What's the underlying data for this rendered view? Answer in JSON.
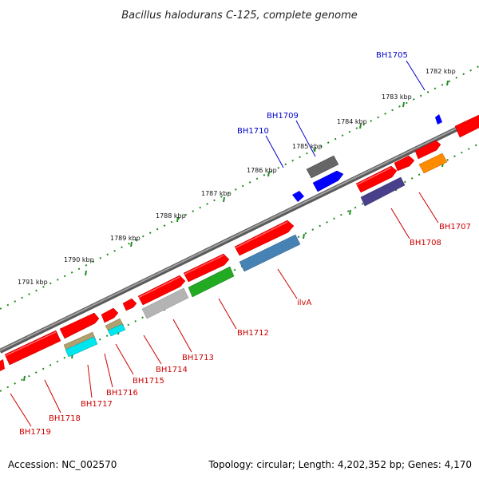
{
  "title": "Bacillus halodurans C-125, complete genome",
  "footer": {
    "accession": "Accession: NC_002570",
    "topology": "Topology: circular; Length: 4,202,352 bp; Genes: 4,170"
  },
  "kbp_ticks": [
    "1782 kbp",
    "1783 kbp",
    "1784 kbp",
    "1785 kbp",
    "1786 kbp",
    "1787 kbp",
    "1788 kbp",
    "1789 kbp",
    "1790 kbp",
    "1791 kbp"
  ],
  "gene_labels": {
    "outer": [
      "BH1705",
      "BH1709",
      "BH1710"
    ],
    "inner": [
      "BH1707",
      "BH1708",
      "ilvA",
      "BH1712",
      "BH1713",
      "BH1714",
      "BH1715",
      "BH1716",
      "BH1717",
      "BH1718",
      "BH1719"
    ]
  },
  "colors": {
    "backbone": "#808080",
    "tick": "#228b22",
    "gene_red": "#ff0000",
    "gene_blue": "#0000ff",
    "gene_gray": "#666666",
    "gene_steelblue": "#4682b4",
    "gene_green": "#22aa22",
    "gene_lightgray": "#b4b4b4",
    "gene_navy": "#48408a",
    "gene_orange": "#ff8c00",
    "gene_khaki": "#b0a070",
    "gene_cyan": "#00e5ee",
    "label_red": "#cc0000",
    "label_blue": "#0000cc"
  }
}
